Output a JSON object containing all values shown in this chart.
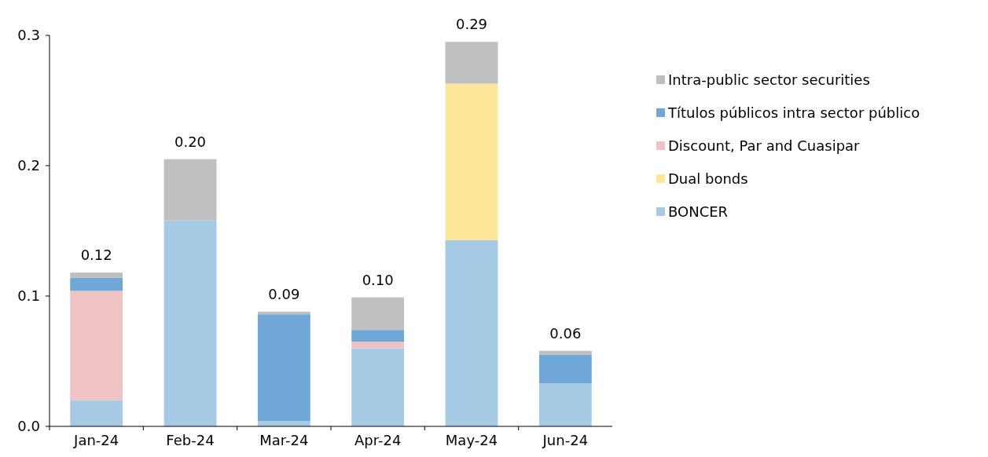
{
  "chart_data": {
    "type": "bar",
    "stacked": true,
    "categories": [
      "Jan-24",
      "Feb-24",
      "Mar-24",
      "Apr-24",
      "May-24",
      "Jun-24"
    ],
    "series": [
      {
        "name": "BONCER",
        "color": "#a6c9e4",
        "values": [
          0.02,
          0.158,
          0.004,
          0.06,
          0.143,
          0.033
        ]
      },
      {
        "name": "Dual bonds",
        "color": "#fde59a",
        "values": [
          0,
          0,
          0,
          0,
          0.12,
          0
        ]
      },
      {
        "name": "Discount, Par and  Cuasipar",
        "color": "#efc2c3",
        "values": [
          0.084,
          0,
          0,
          0.005,
          0,
          0
        ]
      },
      {
        "name": "Títulos públicos intra sector público",
        "color": "#6fa7d6",
        "values": [
          0.01,
          0,
          0.082,
          0.009,
          0,
          0.022
        ]
      },
      {
        "name": "Intra-public sector securities",
        "color": "#bfbfbf",
        "values": [
          0.004,
          0.047,
          0.002,
          0.025,
          0.032,
          0.003
        ]
      }
    ],
    "ylim": [
      0,
      0.3
    ],
    "yticks": [
      {
        "value": 0,
        "label": "0.0"
      },
      0.1,
      0.2,
      0.3
    ],
    "totals": [
      "0.12",
      "0.20",
      "0.09",
      "0.10",
      "0.29",
      "0.06"
    ],
    "legend": "right"
  }
}
